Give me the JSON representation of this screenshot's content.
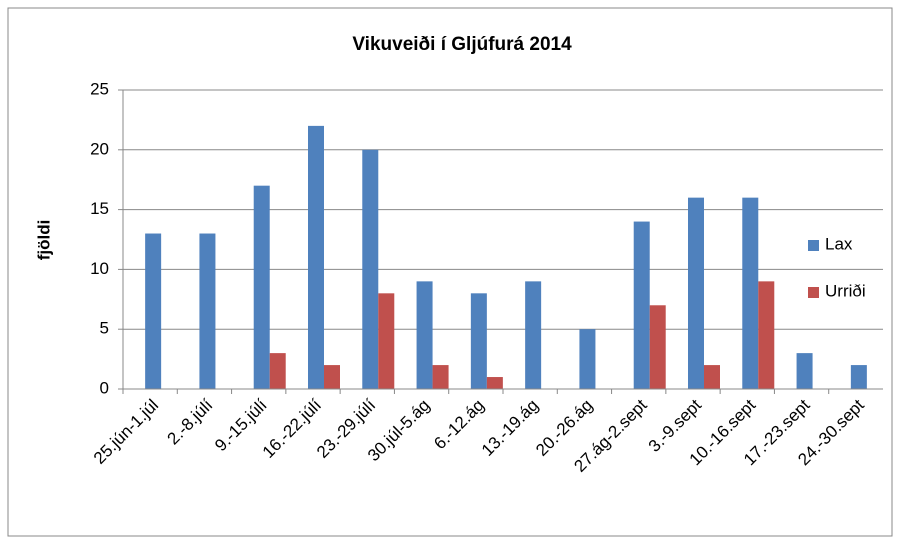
{
  "chart_data": {
    "type": "bar",
    "title": "Vikuveiði í Gljúfurá 2014",
    "y_label": "fjöldi",
    "categories": [
      "25.jún-1.júl",
      "2.-8.júlí",
      "9.-15.júlí",
      "16.-22.júlí",
      "23.-29.júlí",
      "30.júl-5.ág",
      "6.-12.ág",
      "13.-19.ág",
      "20.-26.ág",
      "27.ág-2.sept",
      "3.-9.sept",
      "10.-16.sept",
      "17.-23.sept",
      "24.-30.sept"
    ],
    "series": [
      {
        "name": "Lax",
        "color": "#4f81bd",
        "values": [
          13,
          13,
          17,
          22,
          20,
          9,
          8,
          9,
          5,
          14,
          16,
          16,
          3,
          2
        ]
      },
      {
        "name": "Urriði",
        "color": "#c0504d",
        "values": [
          0,
          0,
          3,
          2,
          8,
          2,
          1,
          0,
          0,
          7,
          2,
          9,
          0,
          0
        ]
      }
    ],
    "ylim": [
      0,
      25
    ],
    "yticks": [
      0,
      5,
      10,
      15,
      20,
      25
    ],
    "grid": true,
    "legend": "right"
  }
}
